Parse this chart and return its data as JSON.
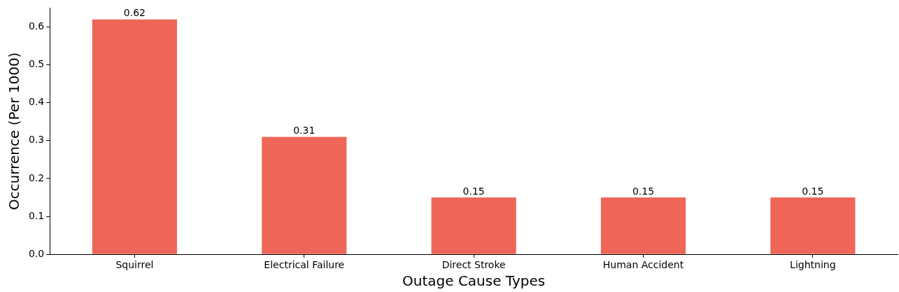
{
  "chart_data": {
    "type": "bar",
    "xlabel": "Outage Cause Types",
    "ylabel": "Occurrence (Per 1000)",
    "categories": [
      "Squirrel",
      "Electrical Failure",
      "Direct Stroke",
      "Human Accident",
      "Lightning"
    ],
    "values": [
      0.62,
      0.31,
      0.15,
      0.15,
      0.15
    ],
    "color": "#ef6658",
    "ylim": [
      0,
      0.65
    ],
    "yticks": [
      {
        "value": 0,
        "label": "0.0"
      },
      0.1,
      0.2,
      0.3,
      0.4,
      0.5,
      0.6
    ],
    "grid": false,
    "legend": false,
    "data_labels": true
  }
}
